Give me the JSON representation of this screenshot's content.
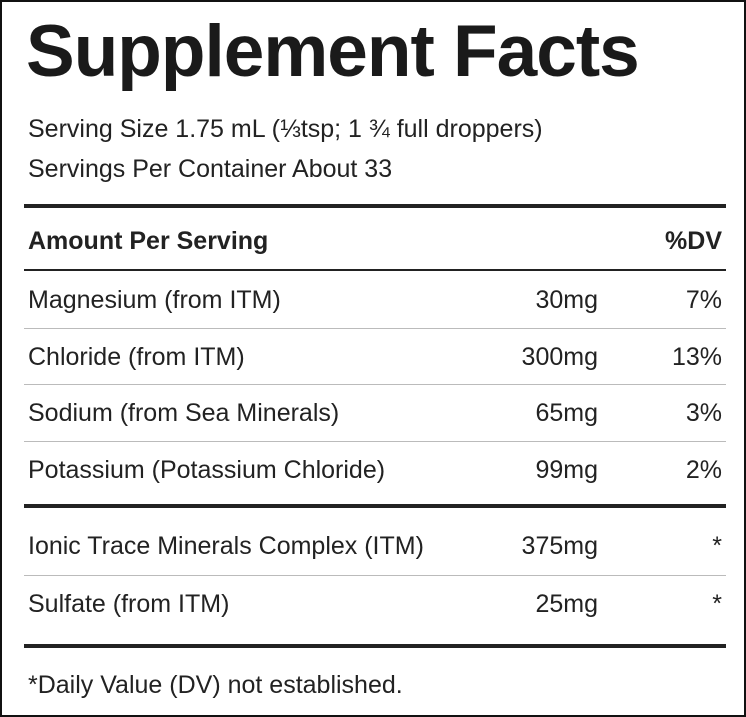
{
  "header": {
    "title": "Supplement Facts"
  },
  "serving": {
    "size": "Serving Size 1.75 mL (⅓tsp; 1 ¾ full droppers)",
    "per_container": "Servings Per Container About 33"
  },
  "table": {
    "header": {
      "label": "Amount Per Serving",
      "dv": "%DV"
    },
    "rows": [
      {
        "name": "Magnesium (from ITM)",
        "amount": "30mg",
        "dv": "7%"
      },
      {
        "name": "Chloride (from ITM)",
        "amount": "300mg",
        "dv": "13%"
      },
      {
        "name": "Sodium (from Sea Minerals)",
        "amount": "65mg",
        "dv": "3%"
      },
      {
        "name": "Potassium (Potassium Chloride)",
        "amount": "99mg",
        "dv": "2%"
      }
    ],
    "other_rows": [
      {
        "name": "Ionic Trace Minerals Complex (ITM)",
        "amount": "375mg",
        "dv": "*"
      },
      {
        "name": "Sulfate (from ITM)",
        "amount": "25mg",
        "dv": "*"
      }
    ]
  },
  "footnote": "*Daily Value (DV) not established."
}
